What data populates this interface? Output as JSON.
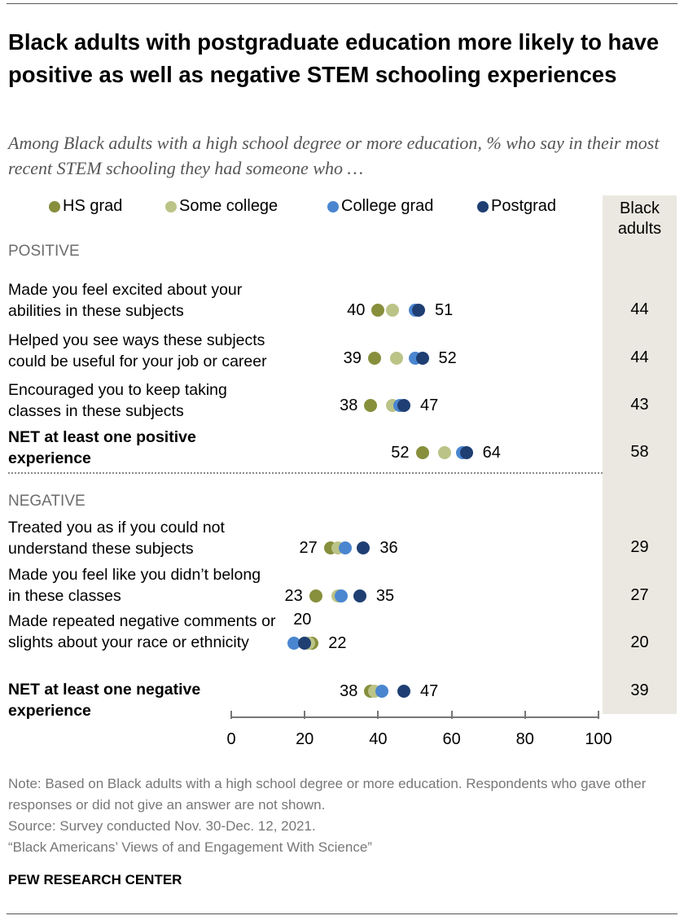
{
  "title": "Black adults with postgraduate education more likely to have positive as well as negative STEM schooling experiences",
  "subtitle": "Among Black adults with a high school degree or more education, % who say in their most recent STEM schooling they had someone who …",
  "chart_data": {
    "type": "dot",
    "xlim": [
      0,
      100
    ],
    "x_ticks": [
      "0",
      "20",
      "40",
      "60",
      "80",
      "100"
    ],
    "legend_position": "top",
    "series": [
      {
        "name": "HS grad",
        "color": "#878f3c"
      },
      {
        "name": "Some college",
        "color": "#bcc387"
      },
      {
        "name": "College grad",
        "color": "#4a86d0"
      },
      {
        "name": "Postgrad",
        "color": "#1f3f73"
      }
    ],
    "total_column_header": "Black adults",
    "sections": [
      {
        "label": "POSITIVE",
        "rows": [
          {
            "label": "Made you feel excited about your abilities in these subjects",
            "values": [
              40,
              44,
              50,
              51
            ],
            "total": "44",
            "net": false
          },
          {
            "label": "Helped you see ways these subjects could be useful for your job or career",
            "values": [
              39,
              45,
              50,
              52
            ],
            "total": "44",
            "net": false
          },
          {
            "label": "Encouraged you to keep taking classes in these subjects",
            "values": [
              38,
              44,
              46,
              47
            ],
            "total": "43",
            "net": false
          },
          {
            "label": "NET at least one positive experience",
            "values": [
              52,
              58,
              63,
              64
            ],
            "total": "58",
            "net": true
          }
        ]
      },
      {
        "label": "NEGATIVE",
        "rows": [
          {
            "label": "Treated you as if you could not understand these subjects",
            "values": [
              27,
              29,
              31,
              36
            ],
            "total": "29",
            "net": false
          },
          {
            "label": "Made you feel like you didn’t belong in these classes",
            "values": [
              23,
              29,
              30,
              35
            ],
            "total": "27",
            "net": false
          },
          {
            "label": "Made repeated negative comments or slights about your race or ethnicity",
            "values": [
              22,
              21,
              17,
              20
            ],
            "total": "20",
            "net": false
          },
          {
            "label": "NET at least one negative experience",
            "values": [
              38,
              39,
              41,
              47
            ],
            "total": "39",
            "net": true
          }
        ]
      }
    ]
  },
  "notes": [
    "Note: Based on Black adults with a high school degree or more education. Respondents who gave other responses or did not give an answer are not shown.",
    "Source: Survey conducted Nov. 30-Dec. 12, 2021.",
    "“Black Americans’ Views of and Engagement With Science”"
  ],
  "brand": "PEW RESEARCH CENTER"
}
